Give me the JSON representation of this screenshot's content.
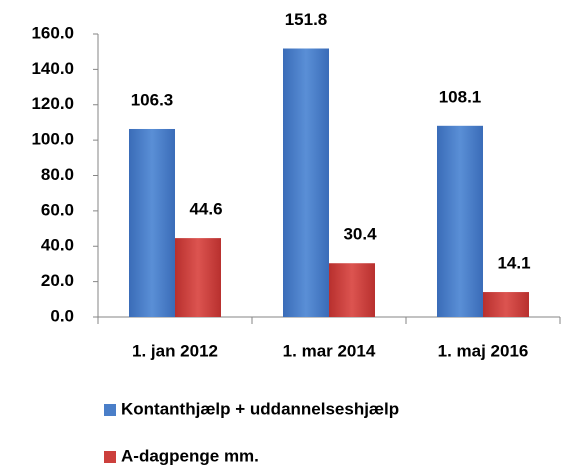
{
  "chart_data": {
    "type": "bar",
    "categories": [
      "1. jan 2012",
      "1. mar 2014",
      "1. maj 2016"
    ],
    "series": [
      {
        "name": "Kontanthjælp + uddannelseshjælp",
        "color": "#4a7ec8",
        "values": [
          106.3,
          151.8,
          108.1
        ]
      },
      {
        "name": "A-dagpenge mm.",
        "color": "#cc3f3c",
        "values": [
          44.6,
          30.4,
          14.1
        ]
      }
    ],
    "ylim": [
      0,
      160
    ],
    "yticks": [
      {
        "value": 0,
        "label": "0.0"
      },
      {
        "value": 20,
        "label": "20.0"
      },
      {
        "value": 40,
        "label": "40.0"
      },
      {
        "value": 60,
        "label": "60.0"
      },
      {
        "value": 80,
        "label": "80.0"
      },
      {
        "value": 100,
        "label": "100.0"
      },
      {
        "value": 120,
        "label": "120.0"
      },
      {
        "value": 140,
        "label": "140.0"
      },
      {
        "value": 160,
        "label": "160.0"
      }
    ],
    "legend": "bottom"
  }
}
